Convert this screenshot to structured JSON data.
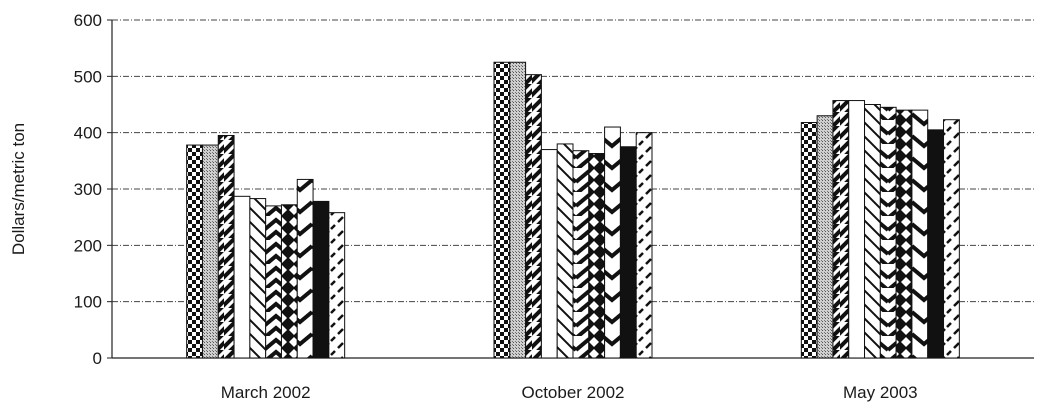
{
  "chart_data": {
    "type": "bar",
    "title": "",
    "xlabel": "",
    "ylabel": "Dollars/metric ton",
    "ylim": [
      0,
      600
    ],
    "yticks": [
      0,
      100,
      200,
      300,
      400,
      500,
      600
    ],
    "ytick_labels": [
      "0",
      "100",
      "200",
      "300",
      "400",
      "500",
      "600"
    ],
    "grid": true,
    "legend": "none",
    "categories": [
      "March 2002",
      "October 2002",
      "May 2003"
    ],
    "series": [
      {
        "pattern": "checker",
        "values": [
          378,
          525,
          418
        ]
      },
      {
        "pattern": "stipple",
        "values": [
          378,
          525,
          430
        ]
      },
      {
        "pattern": "diag-wide",
        "values": [
          395,
          503,
          457
        ]
      },
      {
        "pattern": "white",
        "values": [
          287,
          370,
          457
        ]
      },
      {
        "pattern": "diag-thin",
        "values": [
          283,
          380,
          450
        ]
      },
      {
        "pattern": "zigzag",
        "values": [
          270,
          368,
          445
        ]
      },
      {
        "pattern": "diamond",
        "values": [
          272,
          363,
          440
        ]
      },
      {
        "pattern": "chevron",
        "values": [
          317,
          410,
          440
        ]
      },
      {
        "pattern": "solid",
        "values": [
          278,
          375,
          405
        ]
      },
      {
        "pattern": "dash-diag",
        "values": [
          258,
          400,
          423
        ]
      }
    ]
  }
}
